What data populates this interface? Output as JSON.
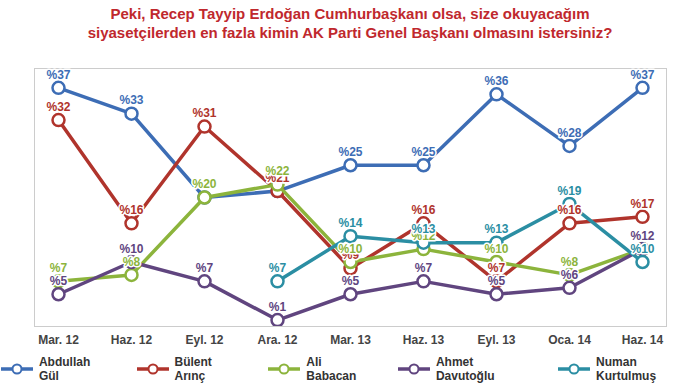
{
  "chart_data": {
    "type": "line",
    "title": "Peki, Recep Tayyip Erdoğan Cumhurbaşkanı olsa, size okuyacağım\nsiyasetçilerden en fazla kimin AK Parti Genel Başkanı olmasını istersiniz?",
    "categories": [
      "Mar. 12",
      "Haz. 12",
      "Eyl. 12",
      "Ara. 12",
      "Mar. 13",
      "Haz. 13",
      "Eyl. 13",
      "Oca. 14",
      "Haz. 14"
    ],
    "series": [
      {
        "name": "Abdullah Gül",
        "color": "#3d6db5",
        "values": [
          37,
          33,
          20,
          21,
          25,
          25,
          36,
          28,
          37
        ],
        "value_labels": [
          "%37",
          "%33",
          "%20",
          "%21",
          "%25",
          "%25",
          "%36",
          "%28",
          "%37"
        ]
      },
      {
        "name": "Bülent Arınç",
        "color": "#b0342c",
        "values": [
          32,
          16,
          31,
          21,
          9,
          16,
          7,
          16,
          17
        ],
        "value_labels": [
          "%32",
          "%16",
          "%31",
          "%21",
          "%9",
          "%16",
          "%7",
          "%16",
          "%17"
        ]
      },
      {
        "name": "Ali Babacan",
        "color": "#8cb43c",
        "values": [
          7,
          8,
          20,
          22,
          10,
          12,
          10,
          8,
          12
        ],
        "value_labels": [
          "%7",
          "%8",
          "%20",
          "%22",
          "%10",
          "%12",
          "%10",
          "%8",
          "%12"
        ]
      },
      {
        "name": "Ahmet Davutoğlu",
        "color": "#60457f",
        "values": [
          5,
          10,
          7,
          1,
          5,
          7,
          5,
          6,
          12
        ],
        "value_labels": [
          "%5",
          "%10",
          "%7",
          "%1",
          "%5",
          "%7",
          "%5",
          "%6",
          "%12"
        ]
      },
      {
        "name": "Numan Kurtulmuş",
        "color": "#2b8ea3",
        "values": [
          null,
          null,
          null,
          7,
          14,
          13,
          13,
          19,
          10
        ],
        "value_labels": [
          null,
          null,
          null,
          "%7",
          "%14",
          "%13",
          "%13",
          "%19",
          "%10"
        ]
      }
    ],
    "ylim": [
      0,
      40
    ],
    "yticks": [],
    "grid": false,
    "tick_labels": "x",
    "data_labels": true,
    "marker": "circle",
    "legend": "bottom"
  }
}
